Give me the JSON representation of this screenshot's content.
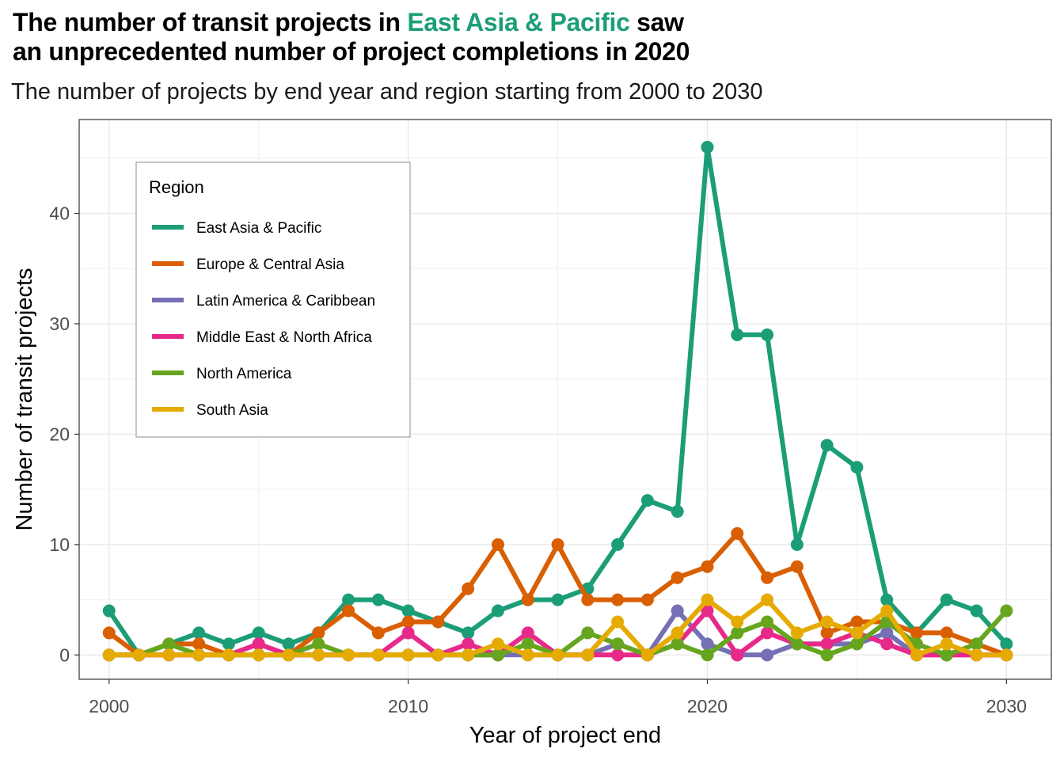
{
  "header": {
    "title_pre": "The number of transit projects in ",
    "title_accent": "East Asia & Pacific",
    "title_post": " saw",
    "title_line2": "an unprecedented number of project completions in 2020",
    "subtitle": "The number of projects by end year and region starting from 2000 to 2030"
  },
  "chart_data": {
    "type": "line",
    "title": "The number of transit projects in East Asia & Pacific saw an unprecedented number of project completions in 2020",
    "subtitle": "The number of projects by end year and region starting from 2000 to 2030",
    "xlabel": "Year of project end",
    "ylabel": "Number of transit projects",
    "xlim": [
      1999,
      2031.5
    ],
    "ylim": [
      -2.2,
      48.5
    ],
    "x_ticks": [
      2000,
      2010,
      2020,
      2030
    ],
    "y_ticks": [
      0,
      10,
      20,
      30,
      40
    ],
    "grid": true,
    "legend": {
      "title": "Region",
      "position": "top-left"
    },
    "x": [
      2000,
      2001,
      2002,
      2003,
      2004,
      2005,
      2006,
      2007,
      2008,
      2009,
      2010,
      2011,
      2012,
      2013,
      2014,
      2015,
      2016,
      2017,
      2018,
      2019,
      2020,
      2021,
      2022,
      2023,
      2024,
      2025,
      2026,
      2027,
      2028,
      2029,
      2030
    ],
    "series": [
      {
        "name": "East Asia & Pacific",
        "color": "#1b9e77",
        "values": [
          4,
          0,
          1,
          2,
          1,
          2,
          1,
          2,
          5,
          5,
          4,
          3,
          2,
          4,
          5,
          5,
          6,
          10,
          14,
          13,
          46,
          29,
          29,
          10,
          19,
          17,
          5,
          2,
          5,
          4,
          1
        ]
      },
      {
        "name": "Europe & Central Asia",
        "color": "#d95f02",
        "values": [
          2,
          0,
          1,
          1,
          0,
          1,
          0,
          2,
          4,
          2,
          3,
          3,
          6,
          10,
          5,
          10,
          5,
          5,
          5,
          7,
          8,
          11,
          7,
          8,
          2,
          3,
          3,
          2,
          2,
          1,
          0
        ]
      },
      {
        "name": "Latin America & Caribbean",
        "color": "#7570b3",
        "values": [
          0,
          0,
          0,
          0,
          0,
          0,
          0,
          0,
          0,
          0,
          0,
          0,
          0,
          0,
          0,
          0,
          0,
          1,
          0,
          4,
          1,
          0,
          0,
          1,
          1,
          1,
          2,
          0,
          0,
          0,
          0
        ]
      },
      {
        "name": "Middle East & North Africa",
        "color": "#e7298a",
        "values": [
          0,
          0,
          0,
          0,
          0,
          1,
          0,
          0,
          0,
          0,
          2,
          0,
          1,
          0,
          2,
          0,
          0,
          0,
          0,
          1,
          4,
          0,
          2,
          1,
          1,
          2,
          1,
          0,
          0,
          0,
          0
        ]
      },
      {
        "name": "North America",
        "color": "#66a61e",
        "values": [
          0,
          0,
          1,
          0,
          0,
          0,
          0,
          1,
          0,
          0,
          0,
          0,
          0,
          0,
          1,
          0,
          2,
          1,
          0,
          1,
          0,
          2,
          3,
          1,
          0,
          1,
          3,
          1,
          0,
          1,
          4
        ]
      },
      {
        "name": "South Asia",
        "color": "#e6ab02",
        "values": [
          0,
          0,
          0,
          0,
          0,
          0,
          0,
          0,
          0,
          0,
          0,
          0,
          0,
          1,
          0,
          0,
          0,
          3,
          0,
          2,
          5,
          3,
          5,
          2,
          3,
          2,
          4,
          0,
          1,
          0,
          0
        ]
      }
    ]
  }
}
